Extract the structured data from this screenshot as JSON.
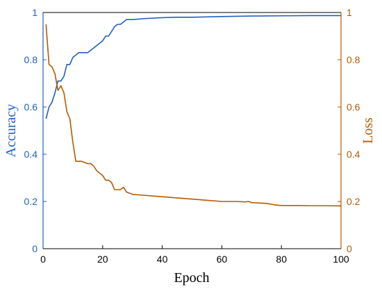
{
  "chart_data": {
    "type": "line",
    "title": "",
    "xlabel": "Epoch",
    "ylabel_left": "Accuracy",
    "ylabel_right": "Loss",
    "xlim": [
      0,
      100
    ],
    "ylim_left": [
      0,
      1
    ],
    "ylim_right": [
      0,
      1
    ],
    "x_ticks": [
      "0",
      "20",
      "40",
      "60",
      "80",
      "100"
    ],
    "y_left_ticks": [
      "0",
      "0.2",
      "0.4",
      "0.6",
      "0.8",
      "1"
    ],
    "y_right_ticks": [
      "0",
      "0.2",
      "0.4",
      "0.6",
      "0.8",
      "1"
    ],
    "grid": false,
    "colors": {
      "accuracy": "#1f5fbf",
      "loss": "#b35a00",
      "axis": "#000000"
    },
    "series": [
      {
        "axis": "left",
        "x": [
          1,
          2,
          3,
          4,
          5,
          6,
          7,
          8,
          9,
          10,
          11,
          12,
          13,
          14,
          15,
          16,
          17,
          18,
          19,
          20,
          21,
          22,
          23,
          24,
          25,
          26,
          27,
          28,
          29,
          30,
          35,
          40,
          45,
          50,
          60,
          70,
          80,
          90,
          100
        ],
        "values": [
          0.55,
          0.6,
          0.62,
          0.66,
          0.71,
          0.71,
          0.73,
          0.78,
          0.78,
          0.81,
          0.82,
          0.83,
          0.83,
          0.83,
          0.83,
          0.84,
          0.85,
          0.86,
          0.87,
          0.88,
          0.9,
          0.9,
          0.92,
          0.94,
          0.95,
          0.95,
          0.96,
          0.97,
          0.97,
          0.97,
          0.975,
          0.978,
          0.98,
          0.98,
          0.983,
          0.985,
          0.986,
          0.987,
          0.987
        ]
      },
      {
        "axis": "right",
        "x": [
          1,
          2,
          3,
          4,
          5,
          6,
          7,
          8,
          9,
          10,
          11,
          12,
          13,
          14,
          15,
          16,
          17,
          18,
          19,
          20,
          21,
          22,
          23,
          24,
          25,
          26,
          27,
          28,
          30,
          35,
          40,
          45,
          50,
          55,
          60,
          65,
          68,
          69,
          70,
          75,
          78,
          80,
          85,
          90,
          95,
          100
        ],
        "values": [
          0.95,
          0.78,
          0.77,
          0.74,
          0.67,
          0.69,
          0.66,
          0.58,
          0.55,
          0.45,
          0.37,
          0.37,
          0.37,
          0.365,
          0.36,
          0.36,
          0.35,
          0.33,
          0.32,
          0.31,
          0.29,
          0.29,
          0.28,
          0.25,
          0.25,
          0.25,
          0.26,
          0.24,
          0.23,
          0.225,
          0.22,
          0.215,
          0.21,
          0.205,
          0.2,
          0.2,
          0.198,
          0.2,
          0.195,
          0.192,
          0.185,
          0.183,
          0.183,
          0.182,
          0.182,
          0.181
        ]
      }
    ]
  }
}
